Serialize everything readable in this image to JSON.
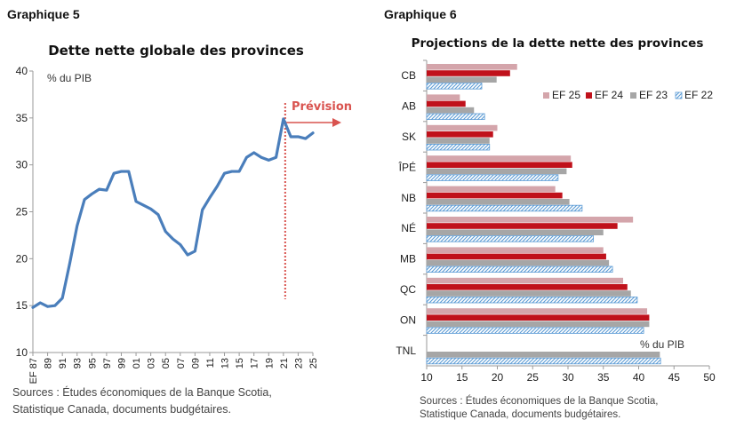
{
  "chart_data": [
    {
      "type": "line",
      "graph_label": "Graphique 5",
      "title": "Dette nette globale des provinces",
      "ylabel": "% du PIB",
      "ylim": [
        10,
        40
      ],
      "yticks": [
        10,
        15,
        20,
        25,
        30,
        35,
        40
      ],
      "x_labels": [
        "EF 87",
        "89",
        "91",
        "93",
        "95",
        "97",
        "99",
        "01",
        "03",
        "05",
        "07",
        "09",
        "11",
        "13",
        "15",
        "17",
        "19",
        "21",
        "23",
        "25"
      ],
      "x": [
        87,
        88,
        89,
        90,
        91,
        92,
        93,
        94,
        95,
        96,
        97,
        98,
        99,
        100,
        101,
        102,
        103,
        104,
        105,
        106,
        107,
        108,
        109,
        110,
        111,
        112,
        113,
        114,
        115,
        116,
        117,
        118,
        119,
        120,
        121,
        122,
        123,
        124,
        125
      ],
      "series": [
        {
          "values": [
            14.8,
            15.3,
            14.9,
            15.0,
            15.8,
            19.5,
            23.5,
            26.3,
            26.9,
            27.4,
            27.3,
            29.1,
            29.3,
            29.3,
            26.1,
            25.7,
            25.3,
            24.7,
            22.9,
            22.1,
            21.5,
            20.4,
            20.8,
            25.2,
            26.5,
            27.7,
            29.1,
            29.3,
            29.3,
            30.8,
            31.3,
            30.8,
            30.5,
            30.8,
            34.9,
            33.0,
            33.0,
            32.8,
            33.4
          ]
        }
      ],
      "annotation": "Prévision",
      "forecast_start": 121,
      "color": "#4a7ebb",
      "forecast_color": "#d9534f",
      "sources": [
        "Sources : Études économiques de la Banque Scotia,",
        "Statistique Canada, documents budgétaires."
      ]
    },
    {
      "type": "bar",
      "orientation": "horizontal",
      "graph_label": "Graphique 6",
      "title": "Projections de la dette nette des provinces",
      "unit_label": "% du PIB",
      "xlim": [
        10,
        50
      ],
      "xticks": [
        10,
        15,
        20,
        25,
        30,
        35,
        40,
        45,
        50
      ],
      "categories": [
        "CB",
        "AB",
        "SK",
        "ÎPÉ",
        "NB",
        "NÉ",
        "MB",
        "QC",
        "ON",
        "TNL"
      ],
      "series": [
        {
          "name": "EF 25",
          "color": "#d4a5ab",
          "values": [
            22.8,
            14.7,
            20.0,
            30.4,
            28.2,
            39.2,
            35.0,
            37.8,
            41.2,
            null
          ]
        },
        {
          "name": "EF 24",
          "color": "#c0111b",
          "values": [
            21.8,
            15.5,
            19.4,
            30.6,
            29.2,
            37.0,
            35.4,
            38.4,
            41.5,
            null
          ]
        },
        {
          "name": "EF 23",
          "color": "#a6a6a6",
          "values": [
            19.9,
            16.7,
            18.9,
            29.8,
            30.2,
            35.0,
            35.8,
            38.9,
            41.5,
            43.0
          ]
        },
        {
          "name": "EF 22",
          "color": "#9dc3e6",
          "values": [
            17.8,
            18.2,
            18.9,
            28.6,
            32.0,
            33.6,
            36.3,
            39.8,
            40.7,
            43.1
          ]
        }
      ],
      "legend_position": "top-right",
      "sources": [
        "Sources : Études économiques de la Banque Scotia,",
        "Statistique Canada, documents budgétaires."
      ]
    }
  ]
}
